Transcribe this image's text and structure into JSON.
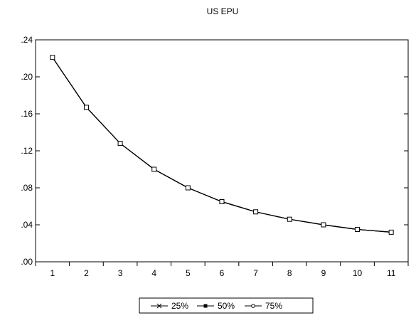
{
  "chart_data": {
    "type": "line",
    "title": "US EPU",
    "xlabel": "",
    "ylabel": "",
    "x": [
      1,
      2,
      3,
      4,
      5,
      6,
      7,
      8,
      9,
      10,
      11
    ],
    "x_tick_labels": [
      "1",
      "2",
      "3",
      "4",
      "5",
      "6",
      "7",
      "8",
      "9",
      "10",
      "11"
    ],
    "y_tick_labels": [
      ".00",
      ".04",
      ".08",
      ".12",
      ".16",
      ".20",
      ".24"
    ],
    "y_ticks": [
      0.0,
      0.04,
      0.08,
      0.12,
      0.16,
      0.2,
      0.24
    ],
    "ylim": [
      0.0,
      0.24
    ],
    "xlim": [
      0.5,
      11.5
    ],
    "grid": false,
    "legend_position": "bottom",
    "series": [
      {
        "name": "25%",
        "marker": "x",
        "color": "#000000",
        "values": [
          0.221,
          0.167,
          0.128,
          0.1,
          0.08,
          0.065,
          0.054,
          0.046,
          0.04,
          0.035,
          0.032
        ]
      },
      {
        "name": "50%",
        "marker": "filled-square",
        "color": "#000000",
        "values": [
          0.221,
          0.167,
          0.128,
          0.1,
          0.08,
          0.065,
          0.054,
          0.046,
          0.04,
          0.035,
          0.032
        ]
      },
      {
        "name": "75%",
        "marker": "open-circle",
        "color": "#000000",
        "values": [
          0.221,
          0.167,
          0.128,
          0.1,
          0.08,
          0.065,
          0.054,
          0.046,
          0.04,
          0.035,
          0.032
        ]
      }
    ]
  }
}
